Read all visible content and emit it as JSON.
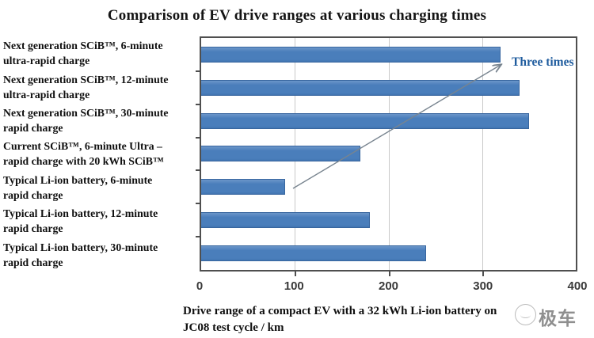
{
  "title": "Comparison of EV drive ranges at various charging times",
  "chart_data": {
    "type": "bar",
    "orientation": "horizontal",
    "title": "Comparison of EV drive ranges at various charging times",
    "categories": [
      [
        "Next generation SCiB™, 6-minute",
        "ultra-rapid charge"
      ],
      [
        "Next generation SCiB™, 12-minute",
        "ultra-rapid charge"
      ],
      [
        "Next generation SCiB™, 30-minute",
        "rapid charge"
      ],
      [
        "Current SCiB™, 6-minute Ultra –",
        "rapid charge with 20 kWh SCiB™"
      ],
      [
        "Typical Li-ion battery, 6-minute",
        "rapid charge"
      ],
      [
        "Typical Li-ion battery, 12-minute",
        "rapid charge"
      ],
      [
        "Typical Li-ion battery, 30-minute",
        "rapid charge"
      ]
    ],
    "values": [
      320,
      340,
      350,
      170,
      90,
      180,
      240
    ],
    "unit": "km",
    "xlim": [
      0,
      400
    ],
    "xticks": [
      0,
      100,
      200,
      300,
      400
    ],
    "grid": "vertical gridlines at 100, 200, 300",
    "legend": "none",
    "xlabel_line1": "Drive range of a compact EV with a 32 kWh Li-ion battery on",
    "xlabel_line2": "JC08 test cycle / km",
    "annotation": "Three times",
    "colors": {
      "bar": "#4a7ebb",
      "bar_border": "#38669f",
      "annotation_text": "#1f5c9e",
      "arrow": "#78848f",
      "gridline": "#c9c9c9",
      "axis": "#4f4f4f"
    }
  },
  "watermark": {
    "text": "极车"
  }
}
